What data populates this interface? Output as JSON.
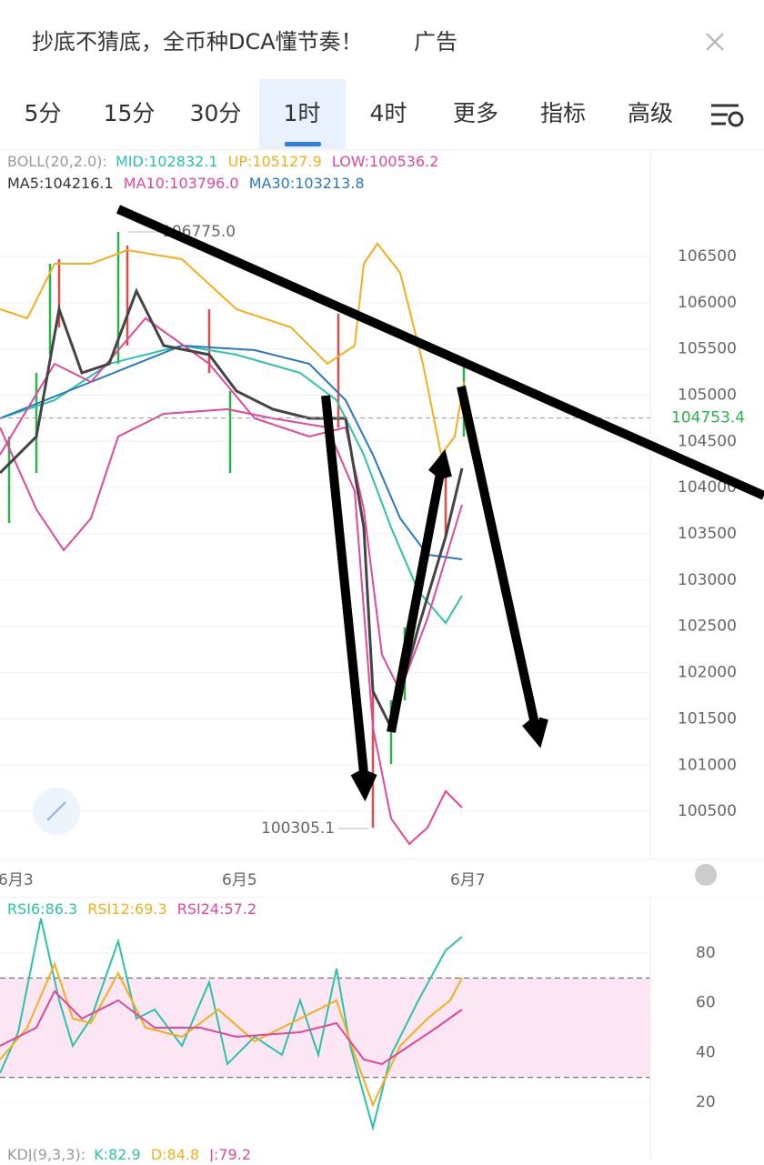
{
  "ad": {
    "text": "抄底不猜底，全币种DCA懂节奏！",
    "tag": "广告"
  },
  "tabs": [
    "5分",
    "15分",
    "30分",
    "1时",
    "4时",
    "更多",
    "指标",
    "高级"
  ],
  "active_tab": 3,
  "main_chart": {
    "boll": "BOLL(20,2.0):",
    "mid": "MID:102832.1",
    "up": "UP:105127.9",
    "low": "LOW:100536.2",
    "ma5": "MA5:104216.1",
    "ma10": "MA10:103796.0",
    "ma30": "MA30:103213.8",
    "high_mark": "106775.0",
    "low_mark": "100305.1",
    "current_price": 104753.4,
    "ylim": [
      99980,
      107650
    ],
    "yticks": [
      100500,
      101000,
      101500,
      102000,
      102500,
      103000,
      103500,
      104000,
      104500,
      105000,
      105500,
      106000,
      106500
    ]
  },
  "dates": [
    "6月3",
    "6月5",
    "6月7"
  ],
  "rsi": {
    "rsi6": "RSI6:86.3",
    "rsi12": "RSI12:69.3",
    "rsi24": "RSI24:57.2",
    "ylim": [
      -1.2,
      101.2
    ],
    "yticks": [
      20,
      40,
      60,
      80
    ],
    "band": [
      30,
      70
    ]
  },
  "kdj": {
    "label": "KDJ(9,3,3):",
    "k": "K:82.9",
    "d": "D:84.8",
    "j": "J:79.2"
  }
}
